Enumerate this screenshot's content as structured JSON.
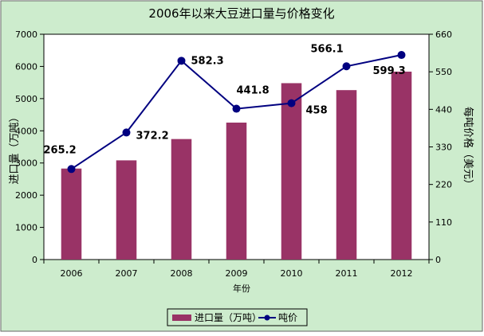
{
  "chart_data": {
    "type": "bar+line",
    "title": "2006年以来大豆进口量与价格变化",
    "xlabel": "年份",
    "ylabel_left": "进口量（万吨）",
    "ylabel_right": "每吨价格（美元）",
    "categories": [
      "2006",
      "2007",
      "2008",
      "2009",
      "2010",
      "2011",
      "2012"
    ],
    "ylim_left": [
      0,
      7000
    ],
    "yticks_left": [
      0,
      1000,
      2000,
      3000,
      4000,
      5000,
      6000,
      7000
    ],
    "ylim_right": [
      0,
      660
    ],
    "yticks_right": [
      0,
      110,
      220,
      330,
      440,
      550,
      660
    ],
    "grid": false,
    "legend_position": "bottom",
    "series": [
      {
        "name": "进口量（万吨）",
        "type": "bar",
        "axis": "left",
        "color": "#993366",
        "values": [
          2827,
          3082,
          3744,
          4255,
          5480,
          5264,
          5838
        ]
      },
      {
        "name": "吨价",
        "type": "line",
        "axis": "right",
        "color": "#000080",
        "values": [
          265.2,
          372.2,
          582.3,
          441.8,
          458,
          566.1,
          599.3
        ],
        "labels": [
          "265.2",
          "372.2",
          "582.3",
          "441.8",
          "458",
          "566.1",
          "599.3"
        ]
      }
    ],
    "background": "#cdeccd"
  }
}
